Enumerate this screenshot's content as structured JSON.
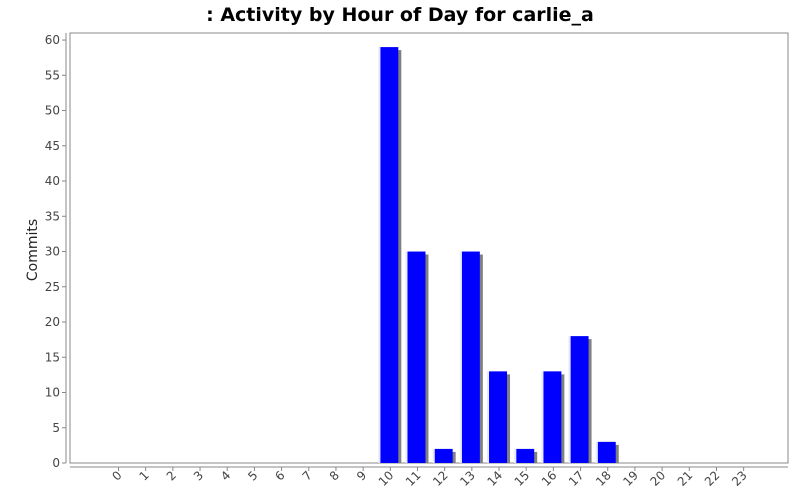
{
  "chart_data": {
    "type": "bar",
    "title": ": Activity by Hour of Day for carlie_a",
    "xlabel": "",
    "ylabel": "Commits",
    "categories": [
      "0",
      "1",
      "2",
      "3",
      "4",
      "5",
      "6",
      "7",
      "8",
      "9",
      "10",
      "11",
      "12",
      "13",
      "14",
      "15",
      "16",
      "17",
      "18",
      "19",
      "20",
      "21",
      "22",
      "23"
    ],
    "values": [
      0,
      0,
      0,
      0,
      0,
      0,
      0,
      0,
      0,
      0,
      59,
      30,
      2,
      30,
      13,
      2,
      13,
      18,
      3,
      0,
      0,
      0,
      0,
      0
    ],
    "ylim": [
      0,
      61
    ],
    "yticks": [
      0,
      5,
      10,
      15,
      20,
      25,
      30,
      35,
      40,
      45,
      50,
      55,
      60
    ],
    "grid": false,
    "legend": "none",
    "colors": {
      "bar": "#0000ff",
      "shadow": "#808080",
      "highlight": "#e8e8ff",
      "axis": "#888888"
    }
  }
}
